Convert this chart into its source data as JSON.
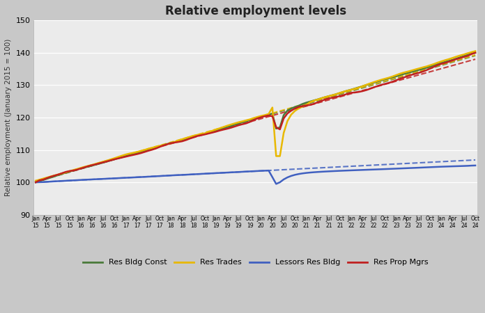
{
  "title": "Relative employment levels",
  "ylabel": "Relative employment (January 2015 = 100)",
  "ylim": [
    90,
    150
  ],
  "yticks": [
    90,
    100,
    110,
    120,
    130,
    140,
    150
  ],
  "fig_bg_color": "#c8c8c8",
  "plot_bg_color": "#ebebeb",
  "colors": {
    "green": "#4a7a3a",
    "yellow": "#e8b800",
    "blue": "#4060c0",
    "red": "#c02020"
  },
  "legend_labels": [
    "Res Bldg Const",
    "Res Trades",
    "Lessors Res Bldg",
    "Res Prop Mgrs"
  ],
  "n_points": 118,
  "covid_month": 63,
  "tick_rotation": -90
}
